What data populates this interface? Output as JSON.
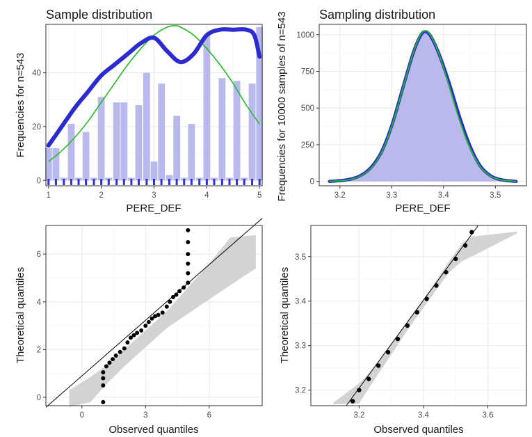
{
  "colors": {
    "bar_fill": "#b9b9ee",
    "kde_line": "#2b2bd0",
    "normal_line": "#22bb22",
    "rug": "#3030cc",
    "points": "#000000",
    "band": "#d3d3d3",
    "ref_line": "#000000"
  },
  "chart_data": [
    {
      "type": "bar",
      "title": "Sample distribution",
      "xlabel": "PERE_DEF",
      "ylabel": "Frequencies for n=543",
      "xlim": [
        0.95,
        5.05
      ],
      "ylim": [
        -2,
        58
      ],
      "xticks": [
        "1",
        "2",
        "3",
        "4",
        "5"
      ],
      "yticks": [
        "0",
        "20",
        "40"
      ],
      "bars": {
        "x": [
          1,
          1.14,
          1.29,
          1.43,
          1.57,
          1.71,
          1.86,
          2,
          2.14,
          2.29,
          2.43,
          2.57,
          2.71,
          2.86,
          3,
          3.14,
          3.29,
          3.43,
          3.57,
          3.71,
          3.86,
          4,
          4.14,
          4.29,
          4.43,
          4.57,
          4.71,
          4.86,
          5
        ],
        "values": [
          12,
          12,
          1,
          21,
          1,
          18,
          1,
          31,
          1,
          29,
          29,
          1,
          28,
          40,
          7,
          36,
          2,
          24,
          1,
          21,
          1,
          54,
          1,
          38,
          1,
          37,
          1,
          36,
          57
        ]
      },
      "series": [
        {
          "name": "kde",
          "x": [
            1,
            1.25,
            1.5,
            1.75,
            2,
            2.25,
            2.5,
            2.75,
            3,
            3.25,
            3.5,
            3.75,
            4,
            4.25,
            4.5,
            4.75,
            4.9,
            5
          ],
          "values": [
            13,
            20,
            27,
            33,
            39,
            43,
            47,
            51,
            53,
            48,
            44,
            47,
            54,
            56,
            56,
            56,
            54,
            46
          ]
        },
        {
          "name": "normal",
          "x": [
            1,
            1.25,
            1.5,
            1.75,
            2,
            2.25,
            2.5,
            2.75,
            3,
            3.25,
            3.4,
            3.5,
            3.75,
            4,
            4.25,
            4.5,
            4.75,
            5
          ],
          "values": [
            7,
            11,
            16,
            22,
            29,
            36,
            43,
            49,
            54,
            57,
            57.5,
            57,
            54,
            49,
            43,
            36,
            28,
            21
          ]
        }
      ],
      "rug_x": [
        1,
        1.14,
        1.29,
        1.43,
        1.57,
        1.71,
        1.86,
        2,
        2.14,
        2.29,
        2.43,
        2.57,
        2.71,
        2.86,
        3,
        3.14,
        3.29,
        3.43,
        3.57,
        3.71,
        3.86,
        4,
        4.14,
        4.29,
        4.43,
        4.57,
        4.71,
        4.86,
        5
      ],
      "grid": true
    },
    {
      "type": "area",
      "title": "Sampling distribution",
      "xlabel": "PERE_DEF",
      "ylabel": "Frequencies for 10000 samples of n=543",
      "xlim": [
        3.16,
        3.56
      ],
      "ylim": [
        -30,
        1070
      ],
      "xticks": [
        "3.2",
        "3.3",
        "3.4",
        "3.5"
      ],
      "yticks": [
        "0",
        "250",
        "500",
        "750",
        "1000"
      ],
      "series": [
        {
          "name": "kde",
          "x": [
            3.18,
            3.2,
            3.22,
            3.24,
            3.26,
            3.28,
            3.3,
            3.32,
            3.34,
            3.355,
            3.365,
            3.375,
            3.39,
            3.41,
            3.43,
            3.45,
            3.47,
            3.49,
            3.51,
            3.53,
            3.54
          ],
          "values": [
            0,
            5,
            15,
            40,
            95,
            200,
            380,
            620,
            860,
            990,
            1020,
            990,
            880,
            680,
            450,
            250,
            110,
            40,
            12,
            3,
            0
          ]
        },
        {
          "name": "normal",
          "x": [
            3.18,
            3.2,
            3.22,
            3.24,
            3.26,
            3.28,
            3.3,
            3.32,
            3.34,
            3.355,
            3.365,
            3.375,
            3.39,
            3.41,
            3.43,
            3.45,
            3.47,
            3.49,
            3.51,
            3.53,
            3.54
          ],
          "values": [
            0,
            4,
            13,
            37,
            90,
            195,
            375,
            615,
            860,
            995,
            1025,
            995,
            880,
            660,
            425,
            235,
            105,
            38,
            11,
            3,
            0
          ]
        }
      ],
      "grid": true
    },
    {
      "type": "scatter",
      "title": "",
      "xlabel": "Observed quantiles",
      "ylabel": "Theoretical quantiles",
      "xlim": [
        -1.7,
        8.5
      ],
      "ylim": [
        -0.35,
        7.2
      ],
      "xticks": [
        "0",
        "3",
        "6"
      ],
      "yticks": [
        "0",
        "2",
        "4",
        "6"
      ],
      "points": {
        "x": [
          1,
          1,
          1,
          1,
          1.15,
          1.3,
          1.45,
          1.6,
          1.8,
          2,
          2.15,
          2.3,
          2.45,
          2.6,
          2.8,
          3,
          3.15,
          3.3,
          3.45,
          3.6,
          3.8,
          4,
          4.15,
          4.3,
          4.45,
          4.6,
          4.8,
          5,
          5,
          5,
          5,
          5,
          5
        ],
        "y": [
          -0.2,
          0.5,
          0.8,
          1.05,
          1.3,
          1.45,
          1.6,
          1.75,
          1.9,
          2.05,
          2.3,
          2.5,
          2.6,
          2.7,
          2.8,
          3,
          3.15,
          3.3,
          3.4,
          3.45,
          3.55,
          3.8,
          4,
          4.2,
          4.3,
          4.45,
          4.6,
          4.8,
          5.2,
          5.6,
          6,
          6.5,
          7
        ]
      },
      "ref_line": [
        [
          -1.7,
          -0.42
        ],
        [
          8.5,
          7.5
        ]
      ],
      "band": [
        {
          "x": -0.6,
          "lo": -0.4,
          "hi": 0.3
        },
        {
          "x": 0.4,
          "lo": -0.2,
          "hi": 0.85
        },
        {
          "x": 1.1,
          "lo": 0.5,
          "hi": 1.3
        },
        {
          "x": 2,
          "lo": 1.3,
          "hi": 2
        },
        {
          "x": 3,
          "lo": 2.1,
          "hi": 2.8
        },
        {
          "x": 4,
          "lo": 2.9,
          "hi": 3.6
        },
        {
          "x": 5,
          "lo": 3.5,
          "hi": 4.6
        },
        {
          "x": 6,
          "lo": 4.1,
          "hi": 5.6
        },
        {
          "x": 7,
          "lo": 4.7,
          "hi": 6.7
        },
        {
          "x": 8.2,
          "lo": 5.4,
          "hi": 6.8
        }
      ],
      "grid": true
    },
    {
      "type": "scatter",
      "title": "",
      "xlabel": "Observed quantiles",
      "ylabel": "Theoretical quantiles",
      "xlim": [
        3.05,
        3.72
      ],
      "ylim": [
        3.165,
        3.57
      ],
      "xticks": [
        "3.2",
        "3.4",
        "3.6"
      ],
      "yticks": [
        "3.2",
        "3.3",
        "3.4",
        "3.5"
      ],
      "points": {
        "x": [
          3.18,
          3.2,
          3.23,
          3.26,
          3.29,
          3.32,
          3.35,
          3.38,
          3.41,
          3.44,
          3.47,
          3.5,
          3.53,
          3.55
        ],
        "y": [
          3.175,
          3.2,
          3.225,
          3.255,
          3.285,
          3.315,
          3.345,
          3.375,
          3.405,
          3.435,
          3.465,
          3.495,
          3.525,
          3.555
        ]
      },
      "ref_line": [
        [
          3.16,
          3.165
        ],
        [
          3.57,
          3.57
        ]
      ],
      "band": [
        {
          "x": 3.12,
          "lo": 3.168,
          "hi": 3.172
        },
        {
          "x": 3.2,
          "lo": 3.17,
          "hi": 3.215
        },
        {
          "x": 3.24,
          "lo": 3.215,
          "hi": 3.245
        },
        {
          "x": 3.3,
          "lo": 3.28,
          "hi": 3.305
        },
        {
          "x": 3.36,
          "lo": 3.345,
          "hi": 3.365
        },
        {
          "x": 3.42,
          "lo": 3.405,
          "hi": 3.425
        },
        {
          "x": 3.48,
          "lo": 3.465,
          "hi": 3.49
        },
        {
          "x": 3.52,
          "lo": 3.49,
          "hi": 3.53
        },
        {
          "x": 3.55,
          "lo": 3.5,
          "hi": 3.545
        },
        {
          "x": 3.69,
          "lo": 3.552,
          "hi": 3.556
        }
      ],
      "grid": true
    }
  ]
}
